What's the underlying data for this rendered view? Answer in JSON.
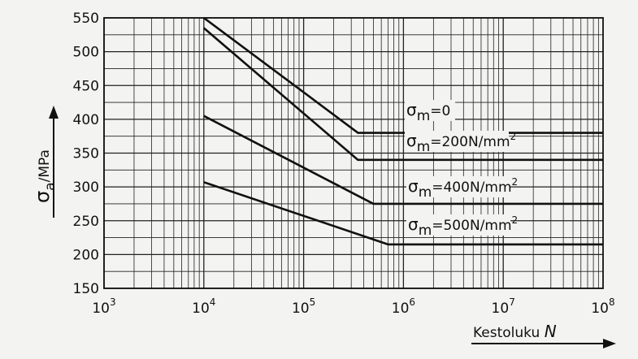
{
  "chart_data": {
    "type": "line",
    "xscale": "log",
    "xlim": [
      1000,
      100000000
    ],
    "ylim": [
      150,
      550
    ],
    "xticks": [
      {
        "base": "10",
        "exp": "3",
        "value": 1000
      },
      {
        "base": "10",
        "exp": "4",
        "value": 10000
      },
      {
        "base": "10",
        "exp": "5",
        "value": 100000
      },
      {
        "base": "10",
        "exp": "6",
        "value": 1000000
      },
      {
        "base": "10",
        "exp": "7",
        "value": 10000000
      },
      {
        "base": "10",
        "exp": "8",
        "value": 100000000
      }
    ],
    "yticks": [
      "150",
      "200",
      "250",
      "300",
      "350",
      "400",
      "450",
      "500",
      "550"
    ],
    "ylabel": {
      "symbol": "σ",
      "sub": "a",
      "unit": "/MPa"
    },
    "xlabel": {
      "text": "Kestoluku",
      "symbol": "N"
    },
    "grid": true,
    "series": [
      {
        "name": "σm=0",
        "label": {
          "symbol": "σ",
          "sub": "m",
          "rest": "=0",
          "sup": ""
        },
        "x": [
          10000,
          350000,
          100000000
        ],
        "y": [
          550,
          380,
          380
        ]
      },
      {
        "name": "σm=200N/mm2",
        "label": {
          "symbol": "σ",
          "sub": "m",
          "rest": "=200N/mm",
          "sup": "2"
        },
        "x": [
          10000,
          350000,
          100000000
        ],
        "y": [
          535,
          340,
          340
        ]
      },
      {
        "name": "σm=400N/mm2",
        "label": {
          "symbol": "σ",
          "sub": "m",
          "rest": "=400N/mm",
          "sup": "2"
        },
        "x": [
          10000,
          500000,
          100000000
        ],
        "y": [
          405,
          275,
          275
        ]
      },
      {
        "name": "σm=500N/mm2",
        "label": {
          "symbol": "σ",
          "sub": "m",
          "rest": "=500N/mm",
          "sup": "2"
        },
        "x": [
          10000,
          700000,
          100000000
        ],
        "y": [
          307,
          215,
          215
        ]
      }
    ]
  }
}
